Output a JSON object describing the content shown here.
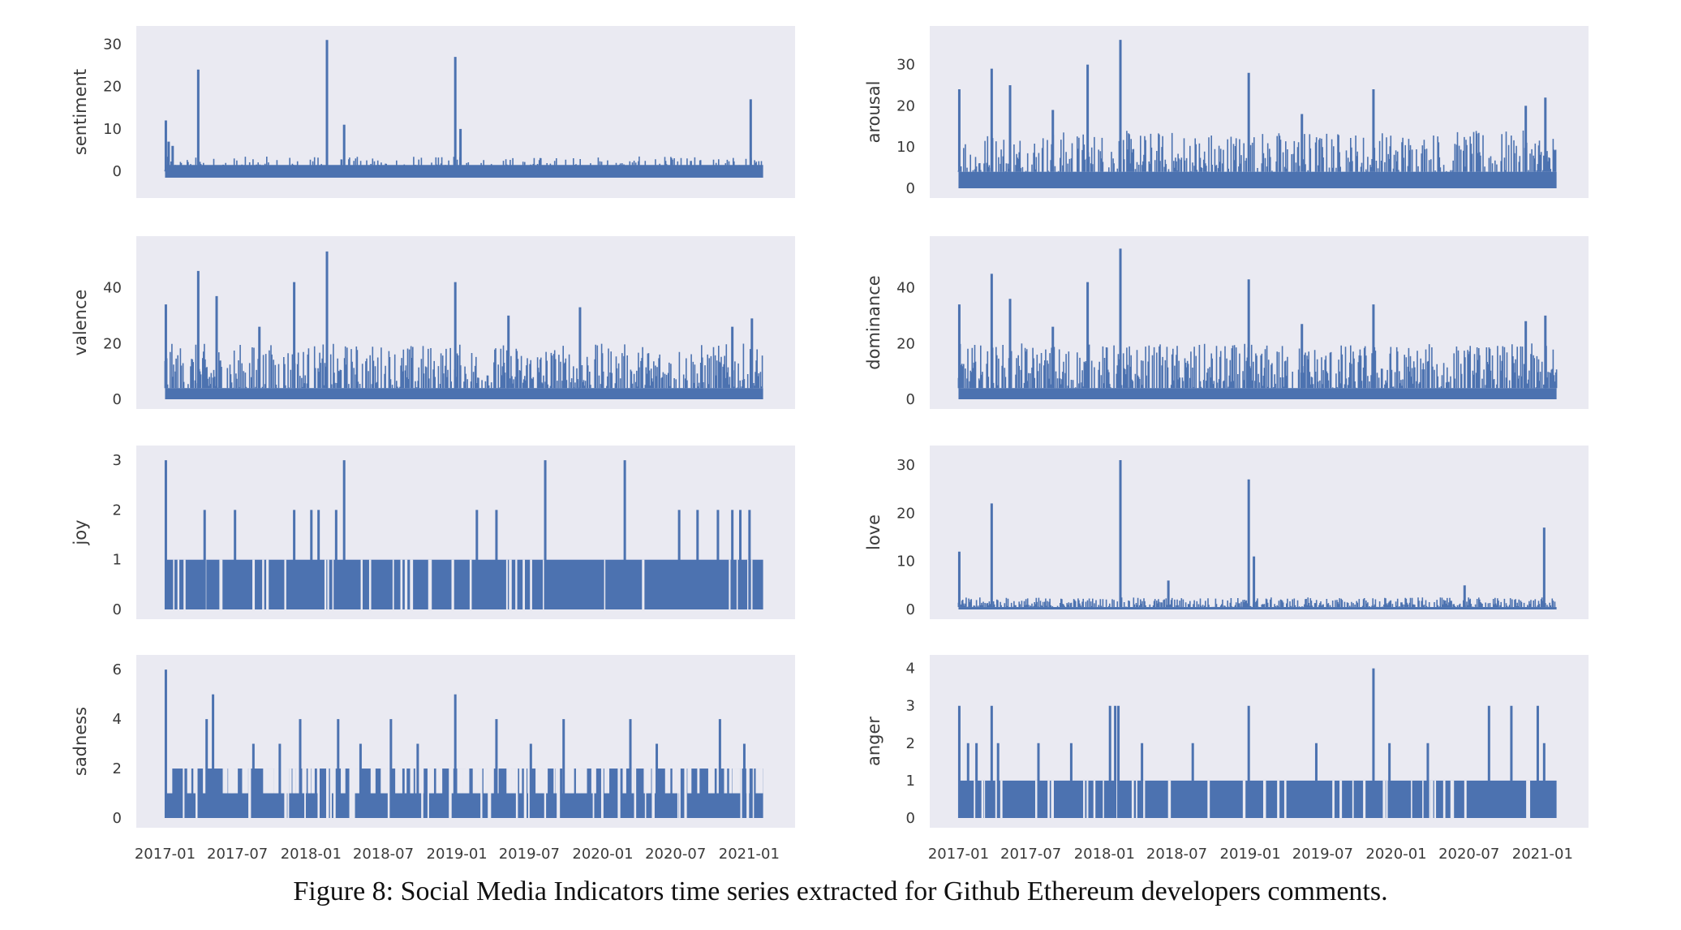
{
  "caption": "Figure 8: Social Media Indicators time series extracted for Github Ethereum developers comments.",
  "style": {
    "plot_bg": "#eaeaf2",
    "series_color": "#4c72b0",
    "text_color": "#3a3a3a"
  },
  "chart_data": [
    {
      "type": "line",
      "ylabel": "sentiment",
      "ylim": [
        -4,
        32
      ],
      "yticks": [
        0,
        10,
        20,
        30
      ],
      "xticks": [
        "2017-01",
        "2017-07",
        "2018-01",
        "2018-07",
        "2019-01",
        "2019-07",
        "2020-01",
        "2020-07",
        "2021-01"
      ],
      "baseline": 0,
      "noise": [
        -3,
        3.5
      ],
      "spikes": [
        [
          "2017-01-03",
          12
        ],
        [
          "2017-01-20",
          6
        ],
        [
          "2017-03-25",
          24
        ],
        [
          "2018-02-10",
          31
        ],
        [
          "2018-03-25",
          11
        ],
        [
          "2018-12-28",
          27
        ],
        [
          "2019-01-10",
          10
        ],
        [
          "2021-01-05",
          17
        ],
        [
          "2017-01-10",
          7
        ]
      ],
      "x_range": [
        "2016-12-25",
        "2021-02-20"
      ]
    },
    {
      "type": "line",
      "ylabel": "arousal",
      "ylim": [
        0,
        37
      ],
      "yticks": [
        0,
        10,
        20,
        30
      ],
      "xticks": [
        "2017-01",
        "2017-07",
        "2018-01",
        "2018-07",
        "2019-01",
        "2019-07",
        "2020-01",
        "2020-07",
        "2021-01"
      ],
      "baseline": 4,
      "noise": [
        0,
        14
      ],
      "spikes": [
        [
          "2017-01-03",
          24
        ],
        [
          "2017-03-25",
          29
        ],
        [
          "2017-05-10",
          25
        ],
        [
          "2017-08-25",
          19
        ],
        [
          "2017-11-20",
          30
        ],
        [
          "2018-02-10",
          36
        ],
        [
          "2018-12-28",
          28
        ],
        [
          "2019-11-05",
          24
        ],
        [
          "2020-11-20",
          20
        ],
        [
          "2021-01-08",
          22
        ],
        [
          "2019-05-10",
          18
        ]
      ],
      "x_range": [
        "2016-12-25",
        "2021-02-20"
      ]
    },
    {
      "type": "line",
      "ylabel": "valence",
      "ylim": [
        0,
        55
      ],
      "yticks": [
        0,
        20,
        40
      ],
      "xticks": [
        "2017-01",
        "2017-07",
        "2018-01",
        "2018-07",
        "2019-01",
        "2019-07",
        "2020-01",
        "2020-07",
        "2021-01"
      ],
      "baseline": 4,
      "noise": [
        0,
        20
      ],
      "spikes": [
        [
          "2017-01-03",
          34
        ],
        [
          "2017-03-25",
          46
        ],
        [
          "2017-05-10",
          37
        ],
        [
          "2017-08-25",
          26
        ],
        [
          "2017-11-20",
          42
        ],
        [
          "2018-02-10",
          53
        ],
        [
          "2018-12-28",
          42
        ],
        [
          "2019-11-05",
          33
        ],
        [
          "2020-11-20",
          26
        ],
        [
          "2021-01-08",
          29
        ],
        [
          "2019-05-10",
          30
        ]
      ],
      "x_range": [
        "2016-12-25",
        "2021-02-20"
      ]
    },
    {
      "type": "line",
      "ylabel": "dominance",
      "ylim": [
        0,
        55
      ],
      "yticks": [
        0,
        20,
        40
      ],
      "xticks": [
        "2017-01",
        "2017-07",
        "2018-01",
        "2018-07",
        "2019-01",
        "2019-07",
        "2020-01",
        "2020-07",
        "2021-01"
      ],
      "baseline": 4,
      "noise": [
        0,
        20
      ],
      "spikes": [
        [
          "2017-01-03",
          34
        ],
        [
          "2017-03-25",
          45
        ],
        [
          "2017-05-10",
          36
        ],
        [
          "2017-08-25",
          26
        ],
        [
          "2017-11-20",
          42
        ],
        [
          "2018-02-10",
          54
        ],
        [
          "2018-12-28",
          43
        ],
        [
          "2019-11-05",
          34
        ],
        [
          "2020-11-20",
          28
        ],
        [
          "2021-01-08",
          30
        ],
        [
          "2019-05-10",
          27
        ]
      ],
      "x_range": [
        "2016-12-25",
        "2021-02-20"
      ]
    },
    {
      "type": "line",
      "ylabel": "joy",
      "ylim": [
        0,
        3.1
      ],
      "yticks": [
        0,
        1,
        2,
        3
      ],
      "xticks": [
        "2017-01",
        "2017-07",
        "2018-01",
        "2018-07",
        "2019-01",
        "2019-07",
        "2020-01",
        "2020-07",
        "2021-01"
      ],
      "discrete_levels": [
        0,
        1
      ],
      "spikes": [
        [
          "2017-01-03",
          3
        ],
        [
          "2018-03-25",
          3
        ],
        [
          "2019-08-10",
          3
        ],
        [
          "2020-02-25",
          3
        ],
        [
          "2017-04-10",
          2
        ],
        [
          "2017-06-25",
          2
        ],
        [
          "2017-11-20",
          2
        ],
        [
          "2018-01-02",
          2
        ],
        [
          "2018-01-20",
          2
        ],
        [
          "2018-03-05",
          2
        ],
        [
          "2019-02-20",
          2
        ],
        [
          "2019-04-10",
          2
        ],
        [
          "2020-07-10",
          2
        ],
        [
          "2020-08-25",
          2
        ],
        [
          "2020-10-15",
          2
        ],
        [
          "2020-11-20",
          2
        ],
        [
          "2020-12-10",
          2
        ],
        [
          "2021-01-02",
          2
        ]
      ],
      "x_range": [
        "2016-12-25",
        "2021-02-20"
      ]
    },
    {
      "type": "line",
      "ylabel": "love",
      "ylim": [
        0,
        32
      ],
      "yticks": [
        0,
        10,
        20,
        30
      ],
      "xticks": [
        "2017-01",
        "2017-07",
        "2018-01",
        "2018-07",
        "2019-01",
        "2019-07",
        "2020-01",
        "2020-07",
        "2021-01"
      ],
      "baseline": 0.5,
      "noise": [
        0,
        2.5
      ],
      "spikes": [
        [
          "2017-01-03",
          12
        ],
        [
          "2017-03-25",
          22
        ],
        [
          "2018-02-10",
          31
        ],
        [
          "2018-12-28",
          27
        ],
        [
          "2019-01-10",
          11
        ],
        [
          "2021-01-05",
          17
        ],
        [
          "2018-06-10",
          6
        ],
        [
          "2020-06-20",
          5
        ]
      ],
      "x_range": [
        "2016-12-25",
        "2021-02-20"
      ]
    },
    {
      "type": "line",
      "ylabel": "sadness",
      "ylim": [
        0,
        6.2
      ],
      "yticks": [
        0,
        2,
        4,
        6
      ],
      "xticks": [
        "2017-01",
        "2017-07",
        "2018-01",
        "2018-07",
        "2019-01",
        "2019-07",
        "2020-01",
        "2020-07",
        "2021-01"
      ],
      "discrete_levels": [
        0,
        1,
        2
      ],
      "spikes": [
        [
          "2017-01-03",
          6
        ],
        [
          "2017-05-01",
          5
        ],
        [
          "2018-12-28",
          5
        ],
        [
          "2017-04-15",
          4
        ],
        [
          "2017-12-05",
          4
        ],
        [
          "2018-03-10",
          4
        ],
        [
          "2018-07-20",
          4
        ],
        [
          "2019-04-10",
          4
        ],
        [
          "2019-09-25",
          4
        ],
        [
          "2020-03-10",
          4
        ],
        [
          "2020-10-20",
          4
        ],
        [
          "2017-08-10",
          3
        ],
        [
          "2017-10-15",
          3
        ],
        [
          "2018-05-05",
          3
        ],
        [
          "2018-09-25",
          3
        ],
        [
          "2019-07-05",
          3
        ],
        [
          "2020-05-15",
          3
        ],
        [
          "2020-12-20",
          3
        ]
      ],
      "x_range": [
        "2016-12-25",
        "2021-02-20"
      ]
    },
    {
      "type": "line",
      "ylabel": "anger",
      "ylim": [
        0,
        4.1
      ],
      "yticks": [
        0,
        1,
        2,
        3,
        4
      ],
      "xticks": [
        "2017-01",
        "2017-07",
        "2018-01",
        "2018-07",
        "2019-01",
        "2019-07",
        "2020-01",
        "2020-07",
        "2021-01"
      ],
      "discrete_levels": [
        0,
        1
      ],
      "spikes": [
        [
          "2019-11-05",
          4
        ],
        [
          "2017-01-03",
          3
        ],
        [
          "2017-03-25",
          3
        ],
        [
          "2018-01-15",
          3
        ],
        [
          "2018-01-28",
          3
        ],
        [
          "2018-02-05",
          3
        ],
        [
          "2018-12-28",
          3
        ],
        [
          "2020-08-20",
          3
        ],
        [
          "2020-10-15",
          3
        ],
        [
          "2020-12-20",
          3
        ],
        [
          "2017-01-25",
          2
        ],
        [
          "2017-02-15",
          2
        ],
        [
          "2017-04-10",
          2
        ],
        [
          "2017-07-20",
          2
        ],
        [
          "2017-10-10",
          2
        ],
        [
          "2018-04-05",
          2
        ],
        [
          "2018-08-10",
          2
        ],
        [
          "2019-06-15",
          2
        ],
        [
          "2019-12-15",
          2
        ],
        [
          "2020-03-20",
          2
        ],
        [
          "2021-01-05",
          2
        ]
      ],
      "x_range": [
        "2016-12-25",
        "2021-02-20"
      ]
    }
  ]
}
